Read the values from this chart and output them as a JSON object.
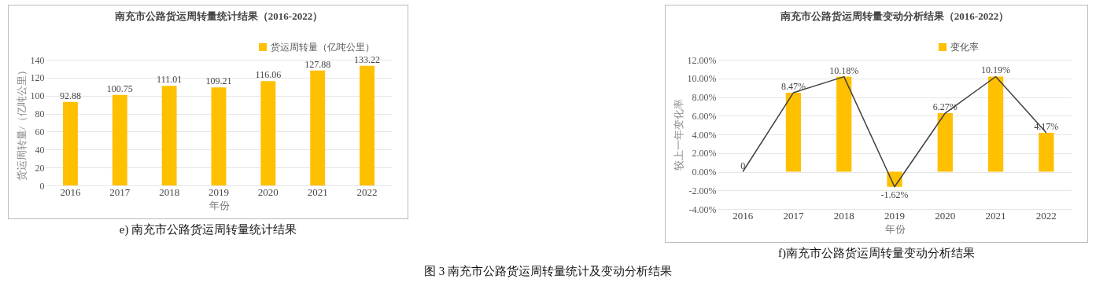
{
  "chart_data": [
    {
      "type": "bar",
      "title": "南充市公路货运周转量统计结果（2016-2022）",
      "xlabel": "年份",
      "ylabel": "货运周转量/（亿吨公里）",
      "categories": [
        "2016",
        "2017",
        "2018",
        "2019",
        "2020",
        "2021",
        "2022"
      ],
      "series": [
        {
          "name": "货运周转量（亿吨公里）",
          "color": "#ffc000",
          "values": [
            92.88,
            100.75,
            111.01,
            109.21,
            116.06,
            127.88,
            133.22
          ]
        }
      ],
      "data_labels": true,
      "ylim": [
        0,
        140
      ],
      "yticks": [
        0,
        20,
        40,
        60,
        80,
        100,
        120,
        140
      ],
      "grid": "y",
      "legend": "top right",
      "annotations": [
        "e) 南充市公路货运周转量统计结果",
        "图 3 南充市公路货运周转量统计及变动分析结果"
      ]
    },
    {
      "type": "bar",
      "title": "南充市公路货运周转量变动分析结果（2016-2022）",
      "xlabel": "年份",
      "ylabel": "较上一年变化率",
      "categories": [
        "2016",
        "2017",
        "2018",
        "2019",
        "2020",
        "2021",
        "2022"
      ],
      "series": [
        {
          "name": "变化率",
          "color": "#ffc000",
          "values": [
            0,
            8.47,
            10.18,
            -1.62,
            6.27,
            10.19,
            4.17
          ],
          "value_labels": [
            "0",
            "8.47%",
            "10.18%",
            "-1.62%",
            "6.27%",
            "10.19%",
            "4.17%"
          ]
        },
        {
          "type": "line",
          "color": "#404040",
          "values": [
            0,
            8.47,
            10.18,
            -1.62,
            6.27,
            10.19,
            4.17
          ]
        }
      ],
      "ylim": [
        -4,
        12
      ],
      "yticks": [
        {
          "value": -4,
          "label": "-4.00%"
        },
        {
          "value": -2,
          "label": "-2.00%"
        },
        {
          "value": 0,
          "label": "0.00%"
        },
        {
          "value": 2,
          "label": "2.00%"
        },
        {
          "value": 4,
          "label": "4.00%"
        },
        {
          "value": 6,
          "label": "6.00%"
        },
        {
          "value": 8,
          "label": "8.00%"
        },
        {
          "value": 10,
          "label": "10.00%"
        },
        {
          "value": 12,
          "label": "12.00%"
        }
      ],
      "grid": "y",
      "legend": "top right",
      "annotations": [
        "f)南充市公路货运周转量变动分析结果"
      ]
    }
  ]
}
